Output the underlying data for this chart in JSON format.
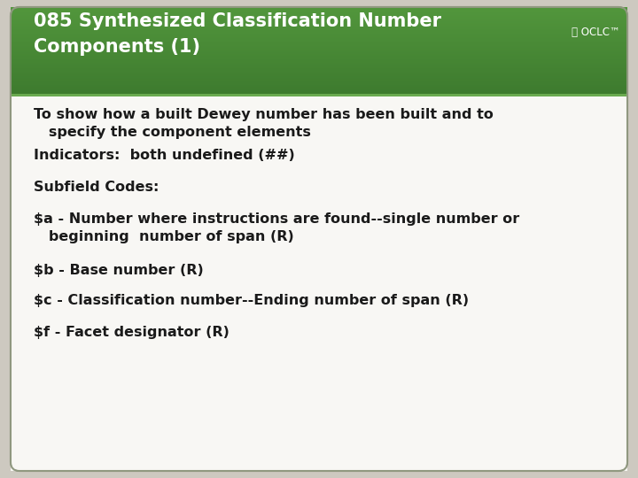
{
  "title_line1": "085 Synthesized Classification Number",
  "title_line2": "Components (1)",
  "title_bg_color": "#3d7a2e",
  "title_bg_color2": "#4e8f3a",
  "title_text_color": "#ffffff",
  "body_bg_color": "#cdc9c0",
  "card_bg_color": "#f8f7f4",
  "body_text_color": "#1a1a1a",
  "border_color": "#5a8a40",
  "header_separator_color": "#6aaa50",
  "content": [
    "To show how a built Dewey number has been built and to\n   specify the component elements",
    "Indicators:  both undefined (##)",
    "Subfield Codes:",
    "$a - Number where instructions are found--single number or\n   beginning  number of span (R)",
    "$b - Base number (R)",
    "$c - Classification number--Ending number of span (R)",
    "$f - Facet designator (R)"
  ],
  "figsize": [
    7.2,
    5.4
  ],
  "dpi": 100
}
